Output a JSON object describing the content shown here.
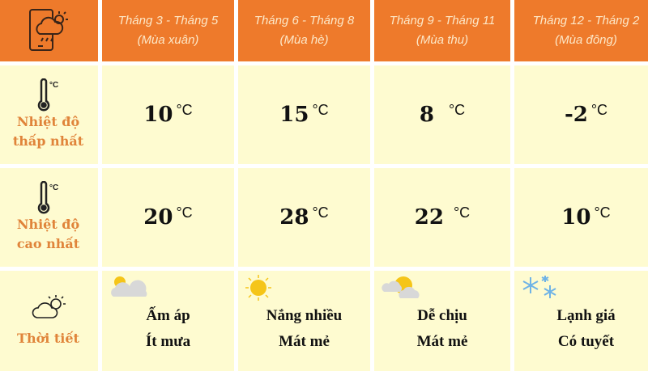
{
  "header": {
    "icon": "phone-weather-icon",
    "seasons": [
      {
        "months": "Tháng 3 - Tháng 5",
        "name": "(Mùa xuân)"
      },
      {
        "months": "Tháng 6 - Tháng 8",
        "name": "(Mùa hè)"
      },
      {
        "months": "Tháng 9 - Tháng 11",
        "name": "(Mùa thu)"
      },
      {
        "months": "Tháng 12 - Tháng 2",
        "name": "(Mùa đông)"
      }
    ]
  },
  "rows": {
    "min": {
      "label1": "Nhiệt độ",
      "label2": "thấp nhất",
      "unit": "°C",
      "values": [
        "10",
        "15",
        "8",
        "-2"
      ]
    },
    "max": {
      "label1": "Nhiệt độ",
      "label2": "cao nhất",
      "unit": "°C",
      "values": [
        "20",
        "28",
        "22",
        "10"
      ]
    },
    "weather": {
      "label": "Thời tiết",
      "items": [
        {
          "icon": "sun-cloud-icon",
          "l1": "Ấm áp",
          "l2": "Ít mưa"
        },
        {
          "icon": "sun-icon",
          "l1": "Nắng nhiều",
          "l2": "Mát mẻ"
        },
        {
          "icon": "cloud-sun-icon",
          "l1": "Dễ chịu",
          "l2": "Mát mẻ"
        },
        {
          "icon": "snowflake-icon",
          "l1": "Lạnh giá",
          "l2": "Có tuyết"
        }
      ]
    }
  },
  "colors": {
    "header": "#ee7a2b",
    "cell": "#fefbd0",
    "label": "#e0843a"
  }
}
